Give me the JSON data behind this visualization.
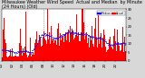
{
  "title": "Milwaukee Weather Wind Speed  Actual and Median  by Minute  (24 Hours) (Old)",
  "bg_color": "#d8d8d8",
  "plot_bg_color": "#ffffff",
  "bar_color": "#ff0000",
  "dot_color": "#0000ff",
  "ylim": [
    0,
    30
  ],
  "ytick_vals": [
    0,
    5,
    10,
    15,
    20,
    25,
    30
  ],
  "n_minutes": 1440,
  "seed": 42,
  "legend_actual_color": "#ff0000",
  "legend_median_color": "#0000ff",
  "legend_actual_label": "Actual",
  "legend_median_label": "Median",
  "vline_positions": [
    480,
    960
  ],
  "vline_color": "#888888",
  "title_fontsize": 3.5,
  "tick_fontsize": 2.8
}
